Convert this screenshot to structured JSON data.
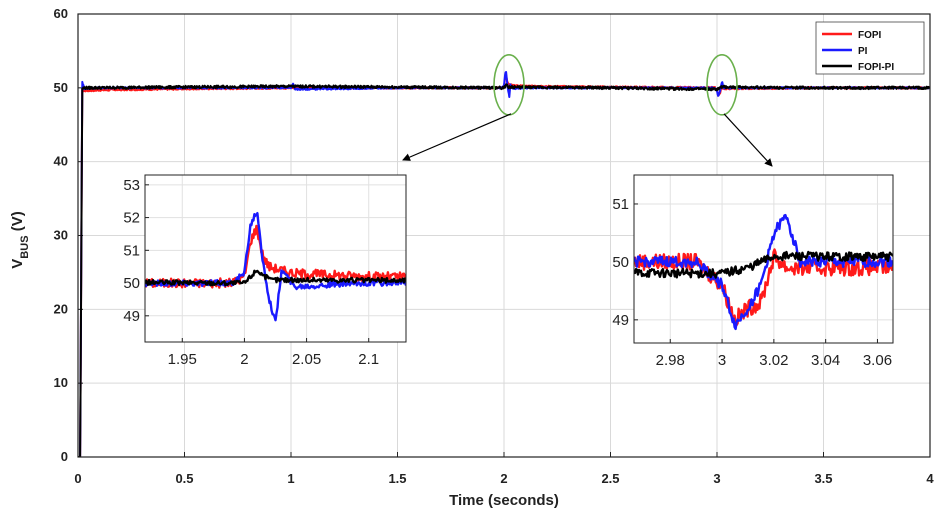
{
  "chart_data": {
    "type": "line",
    "xlabel": "Time (seconds)",
    "ylabel_main": "V",
    "ylabel_sub": "BUS",
    "ylabel_unit": " (V)",
    "xlim": [
      0,
      4
    ],
    "ylim": [
      0,
      60
    ],
    "xticks": [
      0,
      0.5,
      1,
      1.5,
      2,
      2.5,
      3,
      3.5,
      4
    ],
    "xtick_labels": [
      "0",
      "0.5",
      "1",
      "1.5",
      "2",
      "2.5",
      "3",
      "3.5",
      "4"
    ],
    "yticks": [
      0,
      10,
      20,
      30,
      40,
      50,
      60
    ],
    "ytick_labels": [
      "0",
      "10",
      "20",
      "30",
      "40",
      "50",
      "60"
    ],
    "grid": true,
    "legend_position": "top-right",
    "colors": {
      "FOPI": "#ff1a1a",
      "PI": "#1a1aff",
      "FOPI-PI": "#000000",
      "highlight": "#6ab04c"
    },
    "series": [
      {
        "name": "FOPI",
        "color": "#ff1a1a",
        "x": [
          0,
          0.01,
          0.02,
          0.03,
          0.1,
          0.3,
          0.6,
          1.0,
          1.5,
          1.99,
          2.0,
          2.005,
          2.01,
          2.015,
          2.02,
          2.03,
          2.04,
          2.1,
          2.5,
          2.99,
          3.0,
          3.005,
          3.01,
          3.015,
          3.02,
          3.025,
          3.03,
          3.5,
          4.0
        ],
        "y": [
          0,
          0,
          49.8,
          49.6,
          49.7,
          49.8,
          49.9,
          50.0,
          50.0,
          50.0,
          50.2,
          51.3,
          51.7,
          50.8,
          50.5,
          50.4,
          50.3,
          50.2,
          50.1,
          50.0,
          49.6,
          49.0,
          49.2,
          49.3,
          50.1,
          49.9,
          49.9,
          50.0,
          50.0
        ]
      },
      {
        "name": "PI",
        "color": "#1a1aff",
        "x": [
          0,
          0.01,
          0.02,
          0.03,
          0.1,
          1.0,
          1.01,
          1.02,
          1.5,
          1.99,
          2.0,
          2.005,
          2.01,
          2.015,
          2.02,
          2.025,
          2.03,
          2.04,
          2.1,
          2.5,
          2.99,
          3.0,
          3.005,
          3.01,
          3.015,
          3.02,
          3.025,
          3.03,
          3.5,
          4.0
        ],
        "y": [
          0,
          0,
          50.8,
          49.9,
          50.0,
          50.0,
          50.5,
          49.8,
          50.0,
          50.0,
          50.3,
          51.8,
          52.2,
          50.6,
          49.5,
          48.8,
          50.4,
          49.9,
          50.0,
          50.0,
          50.0,
          49.6,
          48.9,
          49.2,
          49.6,
          50.5,
          50.8,
          50.0,
          50.0,
          50.0
        ]
      },
      {
        "name": "FOPI-PI",
        "color": "#000000",
        "x": [
          0,
          0.01,
          0.02,
          0.03,
          0.5,
          1.0,
          1.5,
          2.0,
          2.01,
          2.02,
          2.5,
          3.0,
          3.01,
          3.02,
          3.5,
          4.0
        ],
        "y": [
          0,
          0,
          49.9,
          50.0,
          50.1,
          50.2,
          50.1,
          50.0,
          50.4,
          50.1,
          50.0,
          49.8,
          49.9,
          50.1,
          50.0,
          50.0
        ]
      }
    ],
    "insets": [
      {
        "xlim": [
          1.92,
          2.13
        ],
        "ylim": [
          48.2,
          53.3
        ],
        "xticks": [
          1.95,
          2,
          2.05,
          2.1
        ],
        "xtick_labels": [
          "1.95",
          "2",
          "2.05",
          "2.1"
        ],
        "yticks": [
          49,
          50,
          51,
          52,
          53
        ],
        "ytick_labels": [
          "49",
          "50",
          "51",
          "52",
          "53"
        ],
        "target_x": 2.0
      },
      {
        "xlim": [
          2.966,
          3.066
        ],
        "ylim": [
          48.6,
          51.5
        ],
        "xticks": [
          2.98,
          3,
          3.02,
          3.04,
          3.06
        ],
        "xtick_labels": [
          "2.98",
          "3",
          "3.02",
          "3.04",
          "3.06"
        ],
        "yticks": [
          49,
          50,
          51
        ],
        "ytick_labels": [
          "49",
          "50",
          "51"
        ],
        "target_x": 3.0
      }
    ]
  }
}
